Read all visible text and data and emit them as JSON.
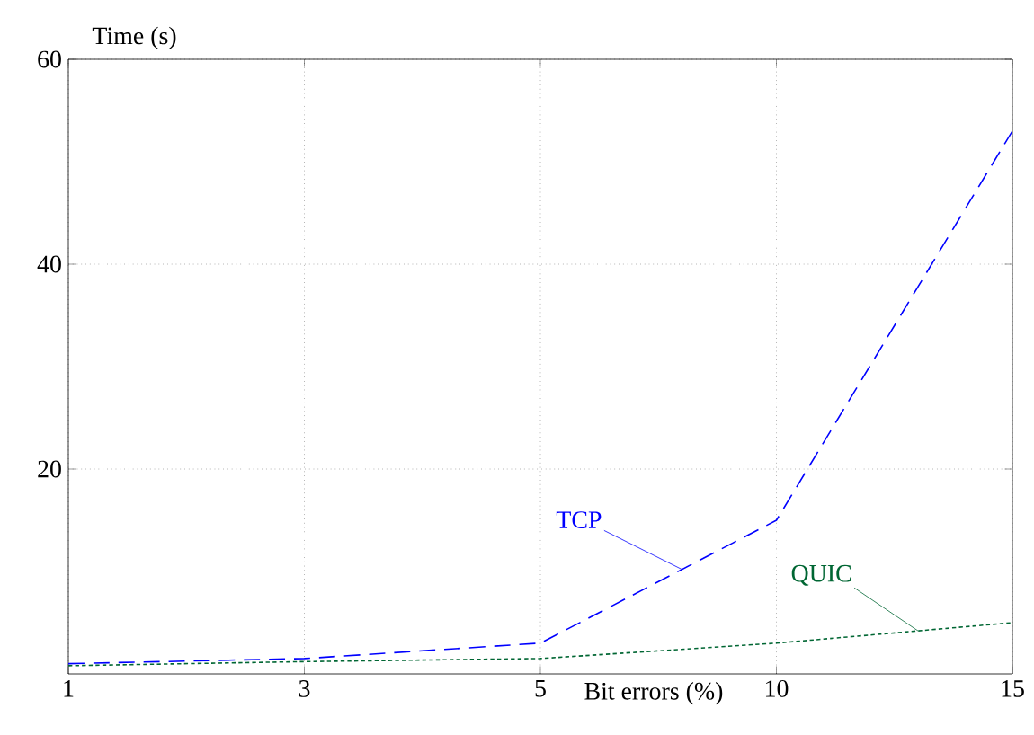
{
  "chart_data": {
    "type": "line",
    "xlabel": "Bit errors (%)",
    "ylabel": "Time (s)",
    "categories": [
      "1",
      "3",
      "5",
      "10",
      "15"
    ],
    "series": [
      {
        "name": "TCP",
        "color": "#0000ff",
        "line_style": "dashed",
        "values": [
          1,
          1.5,
          3,
          15,
          53
        ]
      },
      {
        "name": "QUIC",
        "color": "#006633",
        "line_style": "dotted",
        "values": [
          0.8,
          1.2,
          1.5,
          3,
          5
        ]
      }
    ],
    "ylim": [
      0,
      60
    ],
    "yticks": [
      20,
      40,
      60
    ],
    "grid": true,
    "legend": false,
    "marker": "none"
  }
}
